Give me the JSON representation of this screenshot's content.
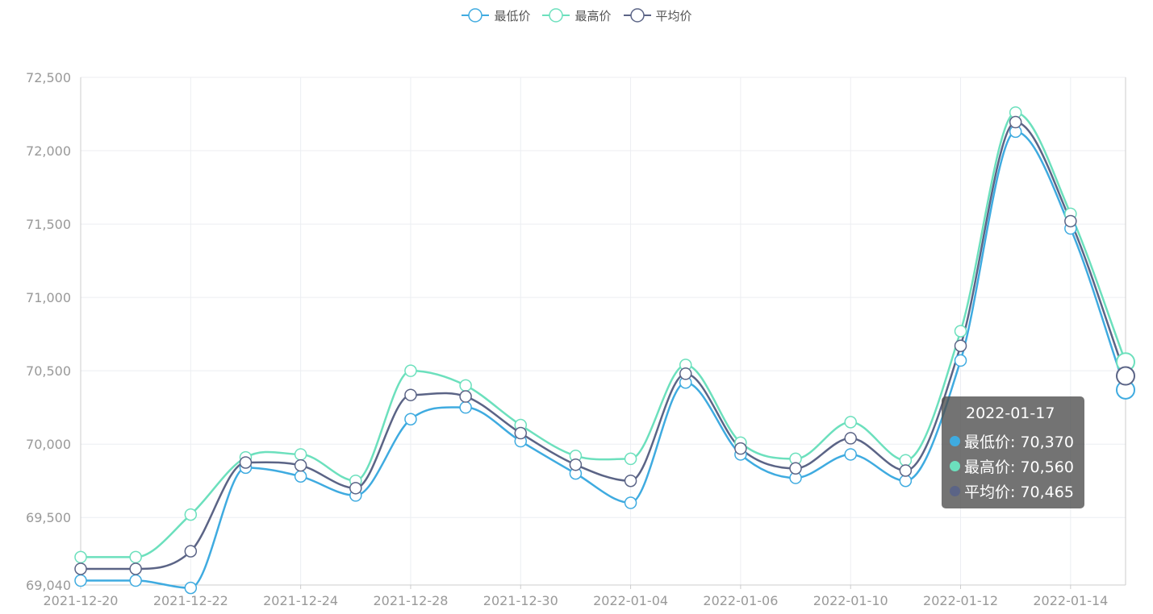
{
  "legend": [
    {
      "label": "最低价",
      "color": "#3fabe0"
    },
    {
      "label": "最高价",
      "color": "#6ce0bd"
    },
    {
      "label": "平均价",
      "color": "#5b6486"
    }
  ],
  "tooltip": {
    "title": "2022-01-17",
    "rows": [
      {
        "text": "最低价: 70,370",
        "color": "#3fabe0"
      },
      {
        "text": "最高价: 70,560",
        "color": "#6ce0bd"
      },
      {
        "text": "平均价: 70,465",
        "color": "#5b6486"
      }
    ]
  },
  "chart_data": {
    "type": "line",
    "title": "",
    "xlabel": "",
    "ylabel": "",
    "ylim": [
      69040,
      72500
    ],
    "y_ticks": [
      {
        "value": 69040,
        "label": "69,040"
      },
      {
        "value": 69500,
        "label": "69,500"
      },
      {
        "value": 70000,
        "label": "70,000"
      },
      {
        "value": 70500,
        "label": "70,500"
      },
      {
        "value": 71000,
        "label": "71,000"
      },
      {
        "value": 71500,
        "label": "71,500"
      },
      {
        "value": 72000,
        "label": "72,000"
      },
      {
        "value": 72500,
        "label": "72,500"
      }
    ],
    "x_tick_labels": [
      "2021-12-20",
      "2021-12-22",
      "2021-12-24",
      "2021-12-28",
      "2021-12-30",
      "2022-01-04",
      "2022-01-06",
      "2022-01-10",
      "2022-01-12",
      "2022-01-14"
    ],
    "x_tick_every": 2,
    "grid": true,
    "legend_position": "top-center",
    "series": [
      {
        "name": "最低价",
        "color": "#3fabe0",
        "values": [
          69070,
          69070,
          69020,
          69840,
          69780,
          69650,
          70170,
          70250,
          70020,
          69800,
          69600,
          70420,
          69930,
          69770,
          69930,
          69750,
          70570,
          72130,
          71470,
          70370
        ]
      },
      {
        "name": "最高价",
        "color": "#6ce0bd",
        "values": [
          69230,
          69230,
          69520,
          69910,
          69930,
          69750,
          70500,
          70400,
          70130,
          69920,
          69900,
          70540,
          70010,
          69900,
          70150,
          69890,
          70770,
          72260,
          71570,
          70560
        ]
      },
      {
        "name": "平均价",
        "color": "#5b6486",
        "values": [
          69150,
          69150,
          69270,
          69875,
          69855,
          69700,
          70335,
          70325,
          70075,
          69860,
          69750,
          70480,
          69970,
          69835,
          70040,
          69820,
          70670,
          72195,
          71520,
          70465
        ]
      }
    ]
  }
}
